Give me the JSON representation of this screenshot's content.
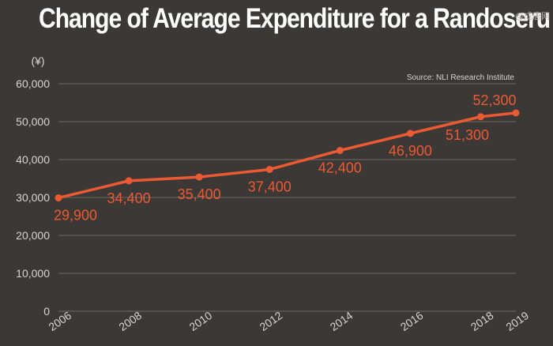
{
  "watermark": "@成唐网",
  "chart_data": {
    "type": "line",
    "title": "Change of Average Expenditure for a Randoseru",
    "ylabel": "(¥)",
    "xlabel": "",
    "source": "Source: NLI Research Institute",
    "x": [
      "2006",
      "2008",
      "2010",
      "2012",
      "2014",
      "2016",
      "2018",
      "2019"
    ],
    "x_numeric": [
      2006,
      2008,
      2010,
      2012,
      2014,
      2016,
      2018,
      2019
    ],
    "values": [
      29900,
      34400,
      35400,
      37400,
      42400,
      46900,
      51300,
      52300
    ],
    "data_labels": [
      "29,900",
      "34,400",
      "35,400",
      "37,400",
      "42,400",
      "46,900",
      "51,300",
      "52,300"
    ],
    "yticks": [
      0,
      10000,
      20000,
      30000,
      40000,
      50000,
      60000
    ],
    "ytick_labels": [
      "0",
      "10,000",
      "20,000",
      "30,000",
      "40,000",
      "50,000",
      "60,000"
    ],
    "ylim": [
      0,
      60000
    ],
    "xlim": [
      2006,
      2019
    ],
    "grid": true,
    "colors": {
      "line": "#ec5a34",
      "label": "#ec5a34",
      "grid": "#6f6b67",
      "tick": "#d8d4cf",
      "text": "#ffffff"
    }
  }
}
